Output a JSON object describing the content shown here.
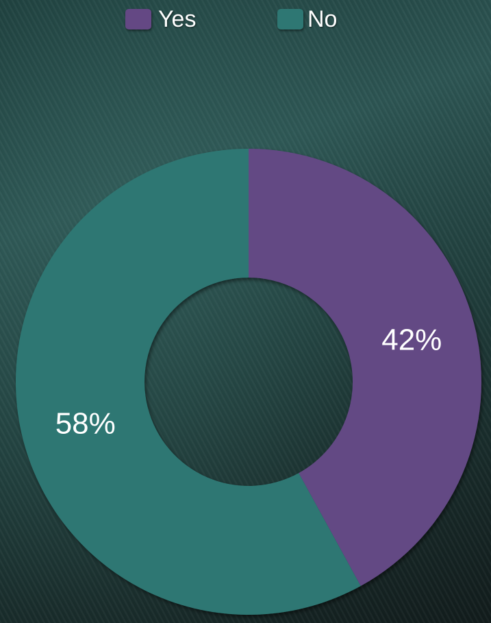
{
  "chart_data": {
    "type": "pie",
    "donut": true,
    "categories": [
      "Yes",
      "No"
    ],
    "values": [
      42,
      58
    ],
    "data_labels": [
      "42%",
      "58%"
    ],
    "colors": [
      "#644884",
      "#2e7773"
    ],
    "legend": {
      "placement": "top"
    },
    "title": ""
  }
}
